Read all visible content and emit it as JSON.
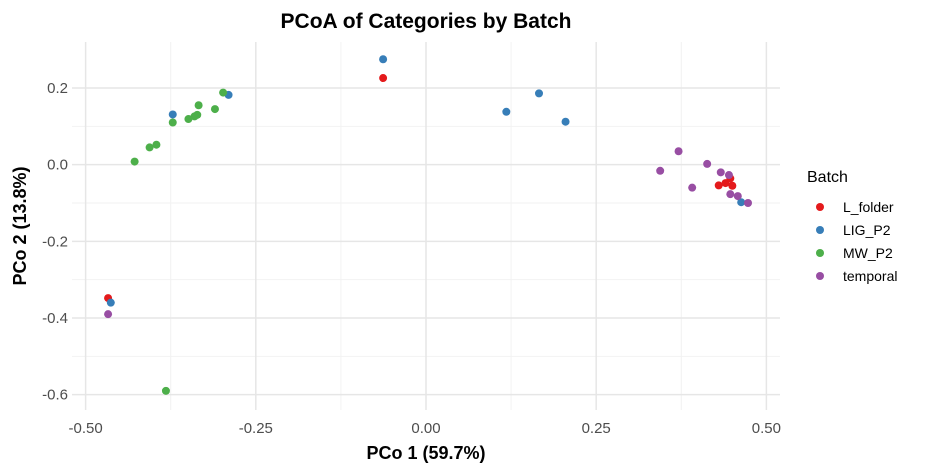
{
  "chart_data": {
    "type": "scatter",
    "title": "PCoA of Categories by Batch",
    "xlabel": "PCo 1 (59.7%)",
    "ylabel": "PCo 2 (13.8%)",
    "xlim": [
      -0.52,
      0.52
    ],
    "ylim": [
      -0.64,
      0.32
    ],
    "xticks": [
      -0.5,
      -0.25,
      0.0,
      0.25,
      0.5
    ],
    "xtick_labels": [
      "-0.50",
      "-0.25",
      "0.00",
      "0.25",
      "0.50"
    ],
    "yticks": [
      0.2,
      0.0,
      -0.2,
      -0.4,
      -0.6
    ],
    "ytick_labels": [
      "0.2",
      "0.0",
      "-0.2",
      "-0.4",
      "-0.6"
    ],
    "grid": true,
    "legend": {
      "title": "Batch",
      "position": "right"
    },
    "series": [
      {
        "name": "L_folder",
        "color": "#E41A1C",
        "x": [
          -0.063,
          -0.467,
          0.43,
          0.44,
          0.447,
          0.45
        ],
        "y": [
          0.226,
          -0.348,
          -0.054,
          -0.048,
          -0.036,
          -0.055
        ]
      },
      {
        "name": "LIG_P2",
        "color": "#377EB8",
        "x": [
          -0.063,
          0.166,
          0.205,
          0.118,
          -0.29,
          -0.372,
          -0.463,
          0.463
        ],
        "y": [
          0.275,
          0.186,
          0.112,
          0.138,
          0.182,
          0.131,
          -0.36,
          -0.098
        ]
      },
      {
        "name": "MW_P2",
        "color": "#4DAF4A",
        "x": [
          -0.298,
          -0.334,
          -0.336,
          -0.31,
          -0.34,
          -0.349,
          -0.372,
          -0.396,
          -0.406,
          -0.428,
          -0.382
        ],
        "y": [
          0.188,
          0.155,
          0.13,
          0.145,
          0.126,
          0.119,
          0.11,
          0.052,
          0.045,
          0.008,
          -0.59
        ]
      },
      {
        "name": "temporal",
        "color": "#984EA3",
        "x": [
          0.344,
          0.371,
          0.413,
          0.433,
          0.445,
          0.391,
          0.447,
          0.458,
          0.473,
          -0.467
        ],
        "y": [
          -0.016,
          0.035,
          0.002,
          -0.02,
          -0.027,
          -0.06,
          -0.077,
          -0.082,
          -0.1,
          -0.39
        ]
      }
    ]
  }
}
